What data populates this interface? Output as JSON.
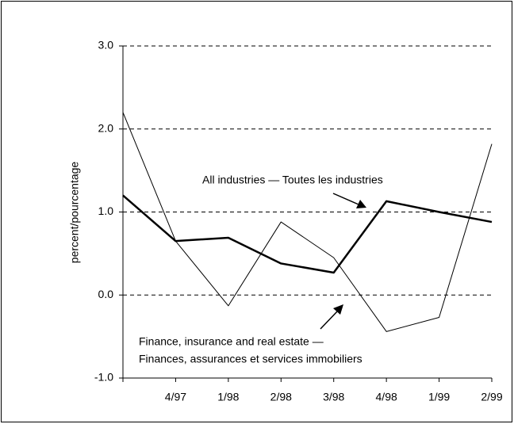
{
  "chart_data": {
    "type": "line",
    "y_axis_label": "percent/pourcentage",
    "categories": [
      null,
      "4/97",
      "1/98",
      "2/98",
      "3/98",
      "4/98",
      "1/99",
      "2/99"
    ],
    "series": [
      {
        "color": "#000000",
        "values": [
          1.2,
          0.65,
          0.69,
          0.38,
          0.27,
          1.13,
          1.0,
          0.88
        ]
      },
      {
        "color": "#000000",
        "values": [
          2.2,
          0.65,
          -0.13,
          0.88,
          0.45,
          -0.44,
          -0.27,
          1.82
        ]
      }
    ],
    "annotations": [
      "All industries — Toutes les industries",
      "Finance, insurance and real estate —",
      "Finances, assurances et services immobiliers"
    ],
    "ylim": [
      -1.0,
      3.0
    ],
    "yticks": [
      {
        "value": -1.0,
        "label": "-1.0"
      },
      {
        "value": 0,
        "label": "0.0"
      },
      {
        "value": 1.0,
        "label": "1.0"
      },
      {
        "value": 2.0,
        "label": "2.0"
      },
      {
        "value": 3.0,
        "label": "3.0"
      }
    ],
    "grid": true
  }
}
